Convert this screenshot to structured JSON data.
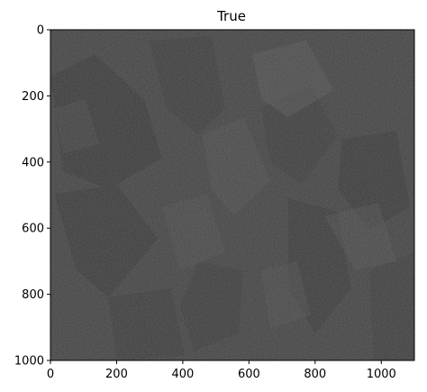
{
  "figure": {
    "title": "True"
  },
  "image_panel": {
    "x_ticks": [
      "0",
      "200",
      "400",
      "600",
      "800",
      "1000"
    ],
    "y_ticks": [
      "0",
      "200",
      "400",
      "600",
      "800",
      "1000"
    ],
    "x_max": 1100,
    "y_max": 1000,
    "colors": {
      "image_base": "#2a2a2a",
      "axis_spine": "#000000"
    },
    "content": "grayscale aerial terrain image"
  }
}
